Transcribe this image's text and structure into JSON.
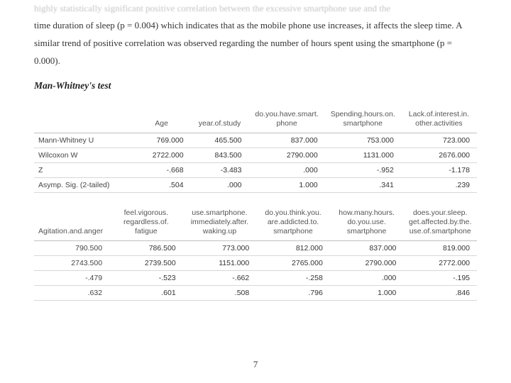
{
  "intro": {
    "fade_line": "highly statistically significant positive correlation between the excessive smartphone use and the",
    "para_rest": "time duration of sleep (p = 0.004) which indicates that as the mobile phone use increases, it affects the sleep time. A similar trend of positive correlation was observed regarding the number of hours spent using the smartphone (p = 0.000)."
  },
  "section_heading": "Man-Whitney's test",
  "table1": {
    "headers": [
      "",
      "Age",
      "year.of.study",
      "do.you.have.smart.\nphone",
      "Spending.hours.on.\nsmartphone",
      "Lack.of.interest.in.\nother.activities"
    ],
    "rows": [
      {
        "label": "Mann-Whitney U",
        "cells": [
          "769.000",
          "465.500",
          "837.000",
          "753.000",
          "723.000"
        ]
      },
      {
        "label": "Wilcoxon W",
        "cells": [
          "2722.000",
          "843.500",
          "2790.000",
          "1131.000",
          "2676.000"
        ]
      },
      {
        "label": "Z",
        "cells": [
          "-.668",
          "-3.483",
          ".000",
          "-.952",
          "-1.178"
        ]
      },
      {
        "label": "Asymp. Sig. (2-tailed)",
        "cells": [
          ".504",
          ".000",
          "1.000",
          ".341",
          ".239"
        ]
      }
    ]
  },
  "table2": {
    "headers": [
      "Agitation.and.anger",
      "feel.vigorous.\nregardless.of.\nfatigue",
      "use.smartphone.\nimmediately.after.\nwaking.up",
      "do.you.think.you.\nare.addicted.to.\nsmartphone",
      "how.many.hours.\ndo.you.use.\nsmartphone",
      "does.your.sleep.\nget.affected.by.the.\nuse.of.smartphone"
    ],
    "rows": [
      {
        "label": "790.500",
        "cells": [
          "786.500",
          "773.000",
          "812.000",
          "837.000",
          "819.000"
        ]
      },
      {
        "label": "2743.500",
        "cells": [
          "2739.500",
          "1151.000",
          "2765.000",
          "2790.000",
          "2772.000"
        ]
      },
      {
        "label": "-.479",
        "cells": [
          "-.523",
          "-.662",
          "-.258",
          ".000",
          "-.195"
        ]
      },
      {
        "label": ".632",
        "cells": [
          ".601",
          ".508",
          ".796",
          "1.000",
          ".846"
        ]
      }
    ]
  },
  "page_number": "7"
}
